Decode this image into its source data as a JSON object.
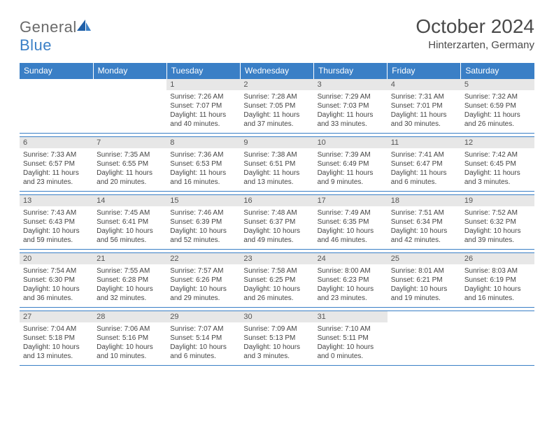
{
  "brand": {
    "t1": "General",
    "t2": "Blue"
  },
  "header": {
    "month_title": "October 2024",
    "location": "Hinterzarten, Germany"
  },
  "colors": {
    "header_bg": "#3a7fc6",
    "daynum_bg": "#e7e7e7",
    "rule": "#3a7fc6"
  },
  "day_names": [
    "Sunday",
    "Monday",
    "Tuesday",
    "Wednesday",
    "Thursday",
    "Friday",
    "Saturday"
  ],
  "weeks": [
    [
      null,
      null,
      {
        "n": "1",
        "sr": "7:26 AM",
        "ss": "7:07 PM",
        "dl": "11 hours and 40 minutes."
      },
      {
        "n": "2",
        "sr": "7:28 AM",
        "ss": "7:05 PM",
        "dl": "11 hours and 37 minutes."
      },
      {
        "n": "3",
        "sr": "7:29 AM",
        "ss": "7:03 PM",
        "dl": "11 hours and 33 minutes."
      },
      {
        "n": "4",
        "sr": "7:31 AM",
        "ss": "7:01 PM",
        "dl": "11 hours and 30 minutes."
      },
      {
        "n": "5",
        "sr": "7:32 AM",
        "ss": "6:59 PM",
        "dl": "11 hours and 26 minutes."
      }
    ],
    [
      {
        "n": "6",
        "sr": "7:33 AM",
        "ss": "6:57 PM",
        "dl": "11 hours and 23 minutes."
      },
      {
        "n": "7",
        "sr": "7:35 AM",
        "ss": "6:55 PM",
        "dl": "11 hours and 20 minutes."
      },
      {
        "n": "8",
        "sr": "7:36 AM",
        "ss": "6:53 PM",
        "dl": "11 hours and 16 minutes."
      },
      {
        "n": "9",
        "sr": "7:38 AM",
        "ss": "6:51 PM",
        "dl": "11 hours and 13 minutes."
      },
      {
        "n": "10",
        "sr": "7:39 AM",
        "ss": "6:49 PM",
        "dl": "11 hours and 9 minutes."
      },
      {
        "n": "11",
        "sr": "7:41 AM",
        "ss": "6:47 PM",
        "dl": "11 hours and 6 minutes."
      },
      {
        "n": "12",
        "sr": "7:42 AM",
        "ss": "6:45 PM",
        "dl": "11 hours and 3 minutes."
      }
    ],
    [
      {
        "n": "13",
        "sr": "7:43 AM",
        "ss": "6:43 PM",
        "dl": "10 hours and 59 minutes."
      },
      {
        "n": "14",
        "sr": "7:45 AM",
        "ss": "6:41 PM",
        "dl": "10 hours and 56 minutes."
      },
      {
        "n": "15",
        "sr": "7:46 AM",
        "ss": "6:39 PM",
        "dl": "10 hours and 52 minutes."
      },
      {
        "n": "16",
        "sr": "7:48 AM",
        "ss": "6:37 PM",
        "dl": "10 hours and 49 minutes."
      },
      {
        "n": "17",
        "sr": "7:49 AM",
        "ss": "6:35 PM",
        "dl": "10 hours and 46 minutes."
      },
      {
        "n": "18",
        "sr": "7:51 AM",
        "ss": "6:34 PM",
        "dl": "10 hours and 42 minutes."
      },
      {
        "n": "19",
        "sr": "7:52 AM",
        "ss": "6:32 PM",
        "dl": "10 hours and 39 minutes."
      }
    ],
    [
      {
        "n": "20",
        "sr": "7:54 AM",
        "ss": "6:30 PM",
        "dl": "10 hours and 36 minutes."
      },
      {
        "n": "21",
        "sr": "7:55 AM",
        "ss": "6:28 PM",
        "dl": "10 hours and 32 minutes."
      },
      {
        "n": "22",
        "sr": "7:57 AM",
        "ss": "6:26 PM",
        "dl": "10 hours and 29 minutes."
      },
      {
        "n": "23",
        "sr": "7:58 AM",
        "ss": "6:25 PM",
        "dl": "10 hours and 26 minutes."
      },
      {
        "n": "24",
        "sr": "8:00 AM",
        "ss": "6:23 PM",
        "dl": "10 hours and 23 minutes."
      },
      {
        "n": "25",
        "sr": "8:01 AM",
        "ss": "6:21 PM",
        "dl": "10 hours and 19 minutes."
      },
      {
        "n": "26",
        "sr": "8:03 AM",
        "ss": "6:19 PM",
        "dl": "10 hours and 16 minutes."
      }
    ],
    [
      {
        "n": "27",
        "sr": "7:04 AM",
        "ss": "5:18 PM",
        "dl": "10 hours and 13 minutes."
      },
      {
        "n": "28",
        "sr": "7:06 AM",
        "ss": "5:16 PM",
        "dl": "10 hours and 10 minutes."
      },
      {
        "n": "29",
        "sr": "7:07 AM",
        "ss": "5:14 PM",
        "dl": "10 hours and 6 minutes."
      },
      {
        "n": "30",
        "sr": "7:09 AM",
        "ss": "5:13 PM",
        "dl": "10 hours and 3 minutes."
      },
      {
        "n": "31",
        "sr": "7:10 AM",
        "ss": "5:11 PM",
        "dl": "10 hours and 0 minutes."
      },
      null,
      null
    ]
  ],
  "labels": {
    "sunrise": "Sunrise: ",
    "sunset": "Sunset: ",
    "daylight": "Daylight: "
  }
}
